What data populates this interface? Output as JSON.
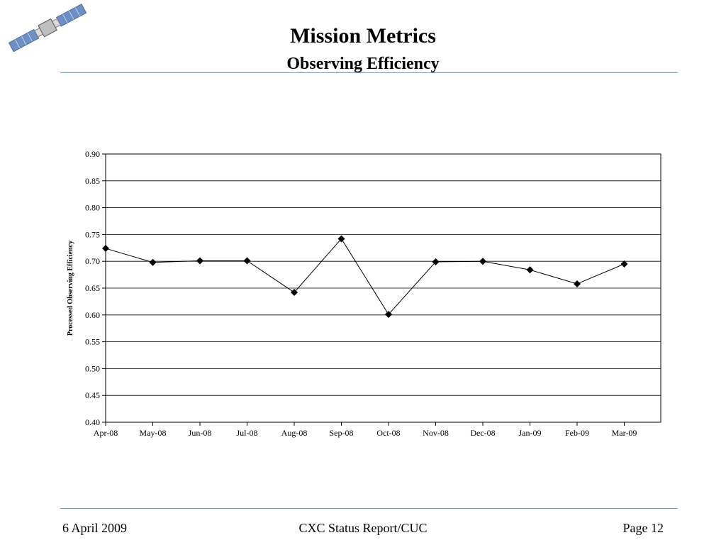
{
  "slide": {
    "title": "Mission Metrics",
    "subtitle": "Observing Efficiency"
  },
  "footer": {
    "date": "6 April 2009",
    "report": "CXC Status Report/CUC",
    "page": "Page 12"
  },
  "logo": {
    "icon": "satellite-icon"
  },
  "colors": {
    "rule": "#7f9fbf",
    "line": "#000000",
    "grid": "#000000"
  },
  "chart_data": {
    "type": "line",
    "title": "",
    "xlabel": "",
    "ylabel": "Processed Observing Efficiency",
    "categories": [
      "Apr-08",
      "May-08",
      "Jun-08",
      "Jul-08",
      "Aug-08",
      "Sep-08",
      "Oct-08",
      "Nov-08",
      "Dec-08",
      "Jan-09",
      "Feb-09",
      "Mar-09"
    ],
    "series": [
      {
        "values": [
          0.724,
          0.698,
          0.701,
          0.701,
          0.642,
          0.742,
          0.601,
          0.699,
          0.7,
          0.684,
          0.658,
          0.695
        ]
      }
    ],
    "ylim": [
      0.4,
      0.9
    ],
    "yticks": [
      "0.40",
      "0.45",
      "0.50",
      "0.55",
      "0.60",
      "0.65",
      "0.70",
      "0.75",
      "0.80",
      "0.85",
      "0.90"
    ],
    "grid": true,
    "legend": "none",
    "marker": "diamond"
  }
}
